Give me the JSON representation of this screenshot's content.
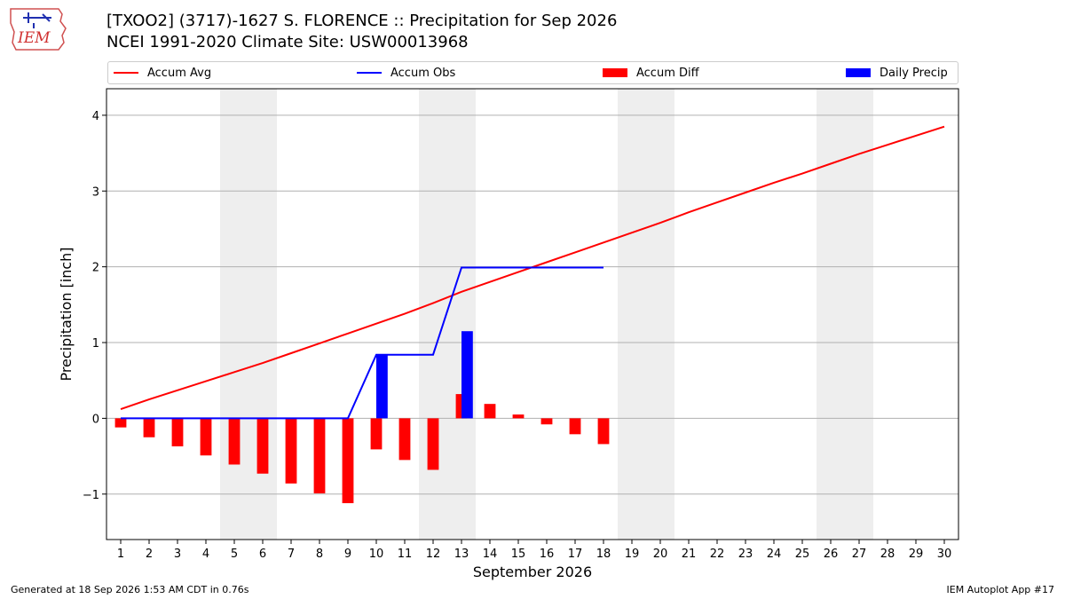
{
  "header": {
    "title_line1": "[TXOO2] (3717)-1627 S. FLORENCE :: Precipitation for Sep 2026",
    "title_line2": "NCEI 1991-2020 Climate Site: USW00013968",
    "logo_text": "IEM"
  },
  "footer": {
    "generated": "Generated at 18 Sep 2026 1:53 AM CDT in 0.76s",
    "app": "IEM Autoplot App #17"
  },
  "chart_data": {
    "type": "bar",
    "xlabel": "September 2026",
    "ylabel": "Precipitation [inch]",
    "xlim": [
      0.5,
      30.5
    ],
    "ylim": [
      -1.6,
      4.35
    ],
    "yticks": [
      -1,
      0,
      1,
      2,
      3,
      4
    ],
    "ytick_labels": [
      "−1",
      "0",
      "1",
      "2",
      "3",
      "4"
    ],
    "grid": true,
    "legend_position": "top",
    "weekend_shading": [
      [
        4.5,
        6.5
      ],
      [
        11.5,
        13.5
      ],
      [
        18.5,
        20.5
      ],
      [
        25.5,
        27.5
      ]
    ],
    "x": [
      1,
      2,
      3,
      4,
      5,
      6,
      7,
      8,
      9,
      10,
      11,
      12,
      13,
      14,
      15,
      16,
      17,
      18,
      19,
      20,
      21,
      22,
      23,
      24,
      25,
      26,
      27,
      28,
      29,
      30
    ],
    "legend": [
      {
        "name": "Accum Avg",
        "kind": "line",
        "color": "#ff0000"
      },
      {
        "name": "Accum Obs",
        "kind": "line",
        "color": "#0000ff"
      },
      {
        "name": "Accum Diff",
        "kind": "patch",
        "color": "#ff0000"
      },
      {
        "name": "Daily Precip",
        "kind": "patch",
        "color": "#0000ff"
      }
    ],
    "series": [
      {
        "name": "Accum Avg",
        "kind": "line",
        "color": "#ff0000",
        "x": [
          1,
          2,
          3,
          4,
          5,
          6,
          7,
          8,
          9,
          10,
          11,
          12,
          13,
          14,
          15,
          16,
          17,
          18,
          19,
          20,
          21,
          22,
          23,
          24,
          25,
          26,
          27,
          28,
          29,
          30
        ],
        "values": [
          0.12,
          0.25,
          0.37,
          0.49,
          0.61,
          0.73,
          0.86,
          0.99,
          1.12,
          1.25,
          1.38,
          1.52,
          1.67,
          1.8,
          1.93,
          2.06,
          2.19,
          2.32,
          2.45,
          2.58,
          2.72,
          2.85,
          2.98,
          3.11,
          3.23,
          3.36,
          3.49,
          3.61,
          3.73,
          3.85
        ]
      },
      {
        "name": "Accum Obs",
        "kind": "line",
        "color": "#0000ff",
        "x": [
          1,
          2,
          3,
          4,
          5,
          6,
          7,
          8,
          9,
          10,
          11,
          12,
          13,
          14,
          15,
          16,
          17,
          18
        ],
        "values": [
          0,
          0,
          0,
          0,
          0,
          0,
          0,
          0,
          0,
          0.84,
          0.84,
          0.84,
          1.99,
          1.99,
          1.99,
          1.99,
          1.99,
          1.99
        ]
      },
      {
        "name": "Accum Diff",
        "kind": "bar",
        "color": "#ff0000",
        "x": [
          1,
          2,
          3,
          4,
          5,
          6,
          7,
          8,
          9,
          10,
          11,
          12,
          13,
          14,
          15,
          16,
          17,
          18
        ],
        "values": [
          -0.12,
          -0.25,
          -0.37,
          -0.49,
          -0.61,
          -0.73,
          -0.86,
          -0.99,
          -1.12,
          -0.41,
          -0.55,
          -0.68,
          0.32,
          0.19,
          0.05,
          -0.08,
          -0.21,
          -0.34
        ]
      },
      {
        "name": "Daily Precip",
        "kind": "bar",
        "color": "#0000ff",
        "x": [
          10,
          13
        ],
        "values": [
          0.84,
          1.15
        ]
      }
    ]
  }
}
